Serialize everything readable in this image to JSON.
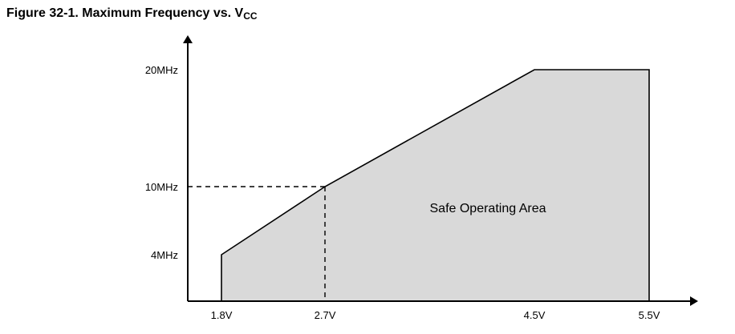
{
  "figure": {
    "label": "Figure 32-1.",
    "title_main": "Maximum Frequency vs. V",
    "title_sub": "CC"
  },
  "chart_data": {
    "type": "area",
    "title": "Figure 32-1. Maximum Frequency vs. VCC",
    "xlabel": "",
    "ylabel": "",
    "x_ticks": [
      {
        "value": 1.8,
        "label": "1.8V"
      },
      {
        "value": 2.7,
        "label": "2.7V"
      },
      {
        "value": 4.5,
        "label": "4.5V"
      },
      {
        "value": 5.5,
        "label": "5.5V"
      }
    ],
    "y_ticks": [
      {
        "value": 4,
        "label": "4MHz"
      },
      {
        "value": 10,
        "label": "10MHz"
      },
      {
        "value": 20,
        "label": "20MHz"
      }
    ],
    "series": [
      {
        "x": [
          1.8,
          1.8,
          2.7,
          4.5,
          5.5,
          5.5
        ],
        "y": [
          0,
          4,
          10,
          20,
          20,
          0
        ]
      }
    ],
    "reference_point": {
      "x": 2.7,
      "y": 10
    },
    "region_label": "Safe Operating Area",
    "fill_color": "#d9d9d9",
    "line_color": "#000000",
    "grid": false
  }
}
